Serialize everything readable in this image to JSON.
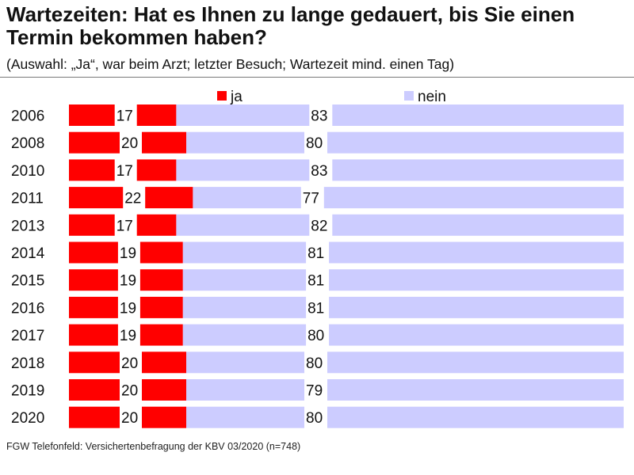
{
  "header": {
    "title": "Wartezeiten: Hat es Ihnen zu lange gedauert, bis Sie einen Termin bekommen haben?",
    "subtitle": "(Auswahl: „Ja“, war beim Arzt; letzter Besuch; Wartezeit mind. einen Tag)"
  },
  "footer": {
    "source": "FGW Telefonfeld: Versichertenbefragung der KBV 03/2020 (n=748)"
  },
  "colors": {
    "ja": "#ff0000",
    "nein": "#ccccff"
  },
  "chart_data": {
    "type": "bar",
    "orientation": "horizontal",
    "stacked": true,
    "title": "Wartezeiten: Hat es Ihnen zu lange gedauert, bis Sie einen Termin bekommen haben?",
    "subtitle": "(Auswahl: „Ja“, war beim Arzt; letzter Besuch; Wartezeit mind. einen Tag)",
    "categories": [
      "2006",
      "2008",
      "2010",
      "2011",
      "2013",
      "2014",
      "2015",
      "2016",
      "2017",
      "2018",
      "2019",
      "2020"
    ],
    "series": [
      {
        "name": "ja",
        "values": [
          17,
          20,
          17,
          22,
          17,
          19,
          19,
          19,
          19,
          20,
          20,
          20
        ]
      },
      {
        "name": "nein",
        "values": [
          83,
          80,
          83,
          77,
          82,
          81,
          81,
          81,
          80,
          80,
          79,
          80
        ]
      }
    ],
    "value_labels": true,
    "legend": "top",
    "grid": false,
    "xlim": [
      0,
      100
    ]
  }
}
